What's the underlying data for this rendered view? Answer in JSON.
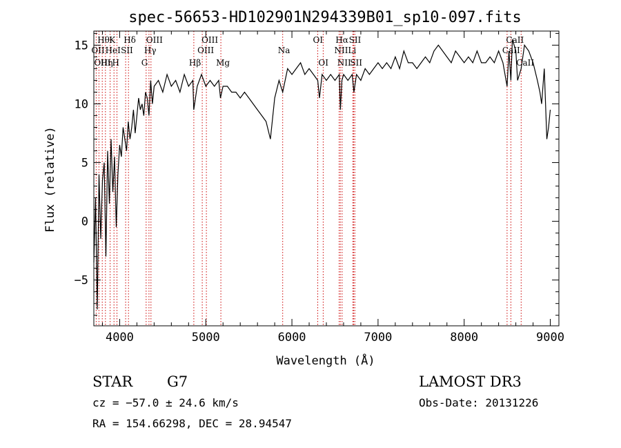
{
  "chart_data": {
    "type": "line",
    "title": "spec-56653-HD102901N294339B01_sp10-097.fits",
    "xlabel": "Wavelength (Å)",
    "ylabel": "Flux (relative)",
    "xlim": [
      3700,
      9100
    ],
    "ylim": [
      -8.9,
      16.2
    ],
    "xticks": [
      4000,
      5000,
      6000,
      7000,
      8000,
      9000
    ],
    "yticks": [
      -5,
      0,
      5,
      10,
      15
    ],
    "grid": false,
    "series": [
      {
        "x": [
          3700,
          3720,
          3740,
          3760,
          3780,
          3800,
          3820,
          3840,
          3860,
          3880,
          3900,
          3920,
          3940,
          3960,
          3980,
          4000,
          4020,
          4040,
          4060,
          4080,
          4100,
          4120,
          4140,
          4160,
          4180,
          4200,
          4220,
          4240,
          4260,
          4280,
          4300,
          4320,
          4340,
          4360,
          4380,
          4400,
          4450,
          4500,
          4550,
          4600,
          4650,
          4700,
          4750,
          4800,
          4850,
          4860,
          4900,
          4950,
          5000,
          5050,
          5100,
          5150,
          5170,
          5200,
          5250,
          5300,
          5350,
          5400,
          5450,
          5500,
          5550,
          5600,
          5650,
          5700,
          5750,
          5800,
          5850,
          5893,
          5950,
          6000,
          6050,
          6100,
          6150,
          6200,
          6250,
          6300,
          6320,
          6350,
          6400,
          6450,
          6500,
          6550,
          6563,
          6580,
          6600,
          6650,
          6700,
          6720,
          6750,
          6800,
          6850,
          6900,
          6950,
          7000,
          7050,
          7100,
          7150,
          7200,
          7250,
          7300,
          7350,
          7400,
          7450,
          7500,
          7550,
          7600,
          7650,
          7700,
          7750,
          7800,
          7850,
          7900,
          7950,
          8000,
          8050,
          8100,
          8150,
          8200,
          8250,
          8300,
          8350,
          8400,
          8450,
          8498,
          8520,
          8542,
          8560,
          8600,
          8620,
          8662,
          8700,
          8750,
          8800,
          8850,
          8880,
          8900,
          8930,
          8960,
          8980,
          9000
        ],
        "y": [
          -3.5,
          2.0,
          -7.5,
          4.0,
          -1.5,
          3.5,
          5.0,
          -3.0,
          6.0,
          1.5,
          7.0,
          2.5,
          5.5,
          -0.5,
          4.0,
          6.5,
          5.5,
          8.0,
          7.0,
          6.0,
          8.5,
          7.0,
          8.0,
          9.5,
          7.5,
          9.0,
          10.5,
          9.5,
          10.0,
          9.0,
          11.0,
          10.5,
          9.0,
          12.0,
          10.0,
          11.5,
          12.0,
          11.0,
          12.5,
          11.5,
          12.0,
          11.0,
          12.5,
          11.5,
          12.0,
          9.5,
          11.5,
          12.5,
          11.5,
          12.0,
          11.5,
          12.0,
          10.5,
          11.5,
          11.5,
          11.0,
          11.0,
          10.5,
          11.0,
          10.5,
          10.0,
          9.5,
          9.0,
          8.5,
          7.0,
          10.5,
          12.0,
          11.0,
          13.0,
          12.5,
          13.0,
          13.5,
          12.5,
          13.0,
          12.5,
          12.0,
          10.5,
          12.5,
          12.0,
          12.5,
          12.0,
          12.5,
          9.5,
          12.0,
          12.5,
          12.0,
          12.5,
          11.0,
          12.5,
          12.0,
          13.0,
          12.5,
          13.0,
          13.5,
          13.0,
          13.5,
          13.0,
          14.0,
          13.0,
          14.5,
          13.5,
          13.5,
          13.0,
          13.5,
          14.0,
          13.5,
          14.5,
          15.0,
          14.5,
          14.0,
          13.5,
          14.5,
          14.0,
          13.5,
          14.0,
          13.5,
          14.5,
          13.5,
          13.5,
          14.0,
          13.5,
          14.5,
          13.5,
          11.5,
          14.5,
          12.0,
          15.5,
          14.5,
          12.0,
          13.0,
          15.0,
          14.5,
          13.5,
          12.0,
          11.0,
          10.0,
          13.0,
          7.0,
          8.0,
          9.5
        ]
      }
    ],
    "line_labels": [
      {
        "label": "Hθ",
        "x": 3798,
        "row": 1
      },
      {
        "label": "OII",
        "x": 3727,
        "row": 2
      },
      {
        "label": "OIII",
        "x": 3759,
        "row": 3
      },
      {
        "label": "K",
        "x": 3934,
        "row": 1
      },
      {
        "label": "HeI",
        "x": 3889,
        "row": 2
      },
      {
        "label": "Hη",
        "x": 3835,
        "row": 3
      },
      {
        "label": "H",
        "x": 3968,
        "row": 3
      },
      {
        "label": "Hδ",
        "x": 4102,
        "row": 1
      },
      {
        "label": "SII",
        "x": 4069,
        "row": 2
      },
      {
        "label": "OIII",
        "x": 4363,
        "row": 1
      },
      {
        "label": "Hγ",
        "x": 4340,
        "row": 2
      },
      {
        "label": "G",
        "x": 4307,
        "row": 3
      },
      {
        "label": "OIII",
        "x": 5007,
        "row": 1
      },
      {
        "label": "OIII",
        "x": 4959,
        "row": 2
      },
      {
        "label": "Hβ",
        "x": 4861,
        "row": 3
      },
      {
        "label": "Mg",
        "x": 5175,
        "row": 3
      },
      {
        "label": "Na",
        "x": 5893,
        "row": 2
      },
      {
        "label": "OI",
        "x": 6300,
        "row": 1
      },
      {
        "label": "OI",
        "x": 6363,
        "row": 3
      },
      {
        "label": "Hα",
        "x": 6563,
        "row": 1
      },
      {
        "label": "NII",
        "x": 6548,
        "row": 2
      },
      {
        "label": "NII",
        "x": 6583,
        "row": 3
      },
      {
        "label": "SII",
        "x": 6717,
        "row": 1
      },
      {
        "label": "Li",
        "x": 6708,
        "row": 2
      },
      {
        "label": "SII",
        "x": 6731,
        "row": 3
      },
      {
        "label": "CaII",
        "x": 8542,
        "row": 1
      },
      {
        "label": "CaII",
        "x": 8498,
        "row": 2
      },
      {
        "label": "CaII",
        "x": 8662,
        "row": 3
      }
    ]
  },
  "info": {
    "class": "STAR",
    "subclass": "G7",
    "survey": "LAMOST DR3",
    "cz": "cz = −57.0 ± 24.6 km/s",
    "obsdate": "Obs-Date: 20131226",
    "radec": "RA = 154.66298, DEC =  28.94547"
  },
  "colors": {
    "line_marker": "#cc0000",
    "spectrum": "#000000"
  }
}
